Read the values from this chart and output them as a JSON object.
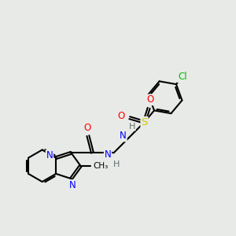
{
  "background_color": "#e8eae8",
  "atom_colors": {
    "C": "#000000",
    "N": "#0000ff",
    "O": "#ff0000",
    "S": "#cccc00",
    "Cl": "#00bb00",
    "H": "#607070"
  },
  "figsize": [
    3.0,
    3.0
  ],
  "dpi": 100,
  "bond_lw": 1.5,
  "double_sep": 0.055
}
